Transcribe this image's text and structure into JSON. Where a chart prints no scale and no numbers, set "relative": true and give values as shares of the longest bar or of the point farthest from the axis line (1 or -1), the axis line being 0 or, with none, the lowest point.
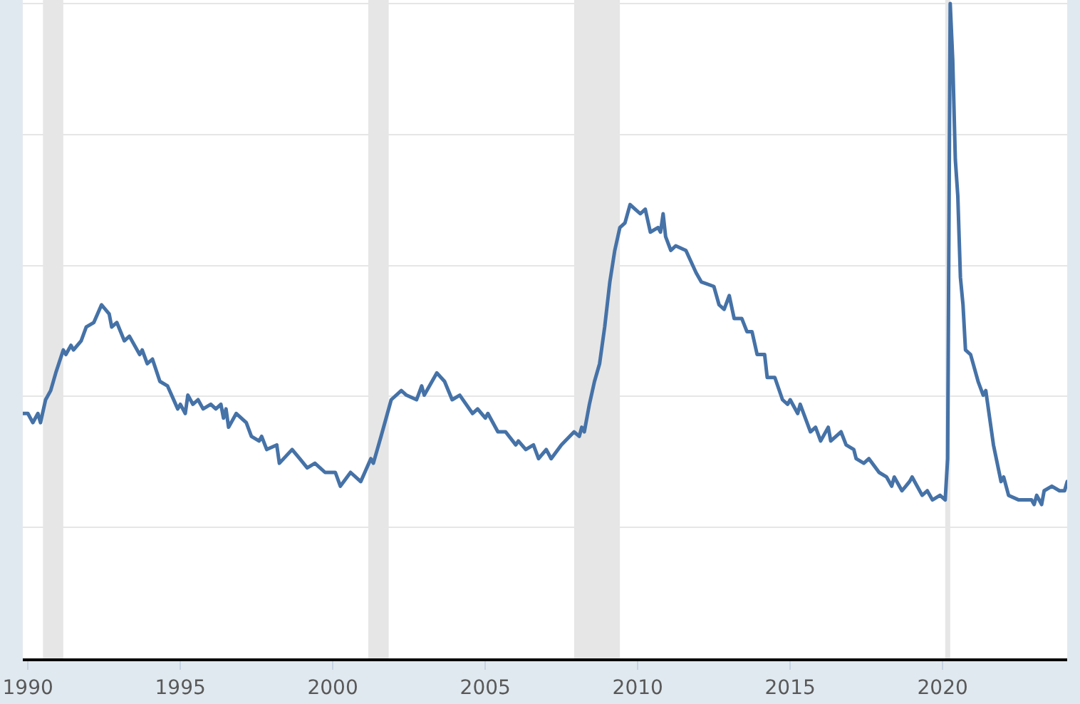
{
  "chart_data": {
    "type": "line",
    "relative": true,
    "x": [
      "1989-11",
      "1990-01",
      "1990-03",
      "1990-05",
      "1990-06",
      "1990-08",
      "1990-10",
      "1990-12",
      "1991-03",
      "1991-04",
      "1991-06",
      "1991-07",
      "1991-10",
      "1991-12",
      "1992-03",
      "1992-06",
      "1992-09",
      "1992-10",
      "1992-12",
      "1993-03",
      "1993-05",
      "1993-09",
      "1993-10",
      "1993-12",
      "1994-02",
      "1994-05",
      "1994-08",
      "1994-12",
      "1995-01",
      "1995-03",
      "1995-04",
      "1995-06",
      "1995-08",
      "1995-10",
      "1996-01",
      "1996-03",
      "1996-05",
      "1996-06",
      "1996-07",
      "1996-08",
      "1996-11",
      "1997-03",
      "1997-05",
      "1997-08",
      "1997-09",
      "1997-11",
      "1998-03",
      "1998-04",
      "1998-09",
      "1998-12",
      "1999-03",
      "1999-06",
      "1999-10",
      "2000-02",
      "2000-04",
      "2000-08",
      "2000-12",
      "2001-04",
      "2001-05",
      "2001-08",
      "2001-10",
      "2001-12",
      "2002-04",
      "2002-06",
      "2002-10",
      "2002-12",
      "2003-01",
      "2003-06",
      "2003-09",
      "2003-12",
      "2004-03",
      "2004-08",
      "2004-10",
      "2005-01",
      "2005-02",
      "2005-06",
      "2005-09",
      "2006-01",
      "2006-02",
      "2006-05",
      "2006-08",
      "2006-10",
      "2007-01",
      "2007-03",
      "2007-07",
      "2007-12",
      "2008-02",
      "2008-03",
      "2008-04",
      "2008-06",
      "2008-08",
      "2008-10",
      "2008-12",
      "2009-02",
      "2009-04",
      "2009-06",
      "2009-08",
      "2009-10",
      "2009-12",
      "2010-02",
      "2010-04",
      "2010-06",
      "2010-09",
      "2010-10",
      "2010-11",
      "2010-12",
      "2011-02",
      "2011-04",
      "2011-08",
      "2011-12",
      "2012-02",
      "2012-07",
      "2012-09",
      "2012-11",
      "2013-01",
      "2013-03",
      "2013-06",
      "2013-08",
      "2013-10",
      "2013-12",
      "2014-03",
      "2014-04",
      "2014-07",
      "2014-10",
      "2014-12",
      "2015-01",
      "2015-04",
      "2015-05",
      "2015-09",
      "2015-11",
      "2016-01",
      "2016-04",
      "2016-05",
      "2016-09",
      "2016-11",
      "2017-02",
      "2017-03",
      "2017-06",
      "2017-08",
      "2017-12",
      "2018-03",
      "2018-05",
      "2018-06",
      "2018-09",
      "2018-12",
      "2019-01",
      "2019-05",
      "2019-07",
      "2019-09",
      "2019-12",
      "2020-02",
      "2020-03",
      "2020-04",
      "2020-05",
      "2020-06",
      "2020-07",
      "2020-08",
      "2020-09",
      "2020-10",
      "2020-12",
      "2021-03",
      "2021-05",
      "2021-06",
      "2021-09",
      "2021-12",
      "2022-01",
      "2022-03",
      "2022-07",
      "2022-12",
      "2023-01",
      "2023-02",
      "2023-04",
      "2023-05",
      "2023-08",
      "2023-11",
      "2024-01",
      "2024-02"
    ],
    "series": [
      {
        "color": "#4572a7",
        "values": [
          0.374,
          0.374,
          0.36,
          0.374,
          0.36,
          0.395,
          0.409,
          0.436,
          0.471,
          0.464,
          0.478,
          0.471,
          0.485,
          0.506,
          0.513,
          0.54,
          0.526,
          0.506,
          0.513,
          0.485,
          0.492,
          0.464,
          0.471,
          0.45,
          0.457,
          0.423,
          0.416,
          0.381,
          0.388,
          0.374,
          0.402,
          0.388,
          0.395,
          0.381,
          0.388,
          0.381,
          0.388,
          0.367,
          0.381,
          0.353,
          0.374,
          0.36,
          0.339,
          0.332,
          0.339,
          0.319,
          0.326,
          0.298,
          0.319,
          0.305,
          0.291,
          0.298,
          0.284,
          0.284,
          0.263,
          0.284,
          0.27,
          0.305,
          0.298,
          0.339,
          0.367,
          0.395,
          0.409,
          0.402,
          0.395,
          0.416,
          0.402,
          0.436,
          0.423,
          0.395,
          0.402,
          0.374,
          0.381,
          0.367,
          0.374,
          0.346,
          0.346,
          0.326,
          0.332,
          0.319,
          0.326,
          0.305,
          0.319,
          0.305,
          0.326,
          0.346,
          0.339,
          0.353,
          0.346,
          0.388,
          0.423,
          0.45,
          0.506,
          0.575,
          0.623,
          0.658,
          0.665,
          0.693,
          0.686,
          0.679,
          0.686,
          0.651,
          0.658,
          0.651,
          0.679,
          0.644,
          0.623,
          0.63,
          0.623,
          0.589,
          0.575,
          0.568,
          0.54,
          0.533,
          0.554,
          0.519,
          0.519,
          0.499,
          0.499,
          0.464,
          0.464,
          0.429,
          0.429,
          0.395,
          0.388,
          0.395,
          0.374,
          0.388,
          0.346,
          0.353,
          0.332,
          0.353,
          0.332,
          0.346,
          0.326,
          0.319,
          0.305,
          0.298,
          0.305,
          0.284,
          0.277,
          0.263,
          0.277,
          0.256,
          0.27,
          0.277,
          0.249,
          0.256,
          0.242,
          0.249,
          0.242,
          0.305,
          1,
          0.914,
          0.762,
          0.706,
          0.582,
          0.54,
          0.471,
          0.464,
          0.423,
          0.402,
          0.409,
          0.326,
          0.27,
          0.277,
          0.249,
          0.242,
          0.242,
          0.235,
          0.249,
          0.235,
          0.256,
          0.263,
          0.256,
          0.256,
          0.27
        ]
      }
    ],
    "xlim": [
      "1989-11-01",
      "2024-02-01"
    ],
    "xticks": [
      "1990",
      "1995",
      "2000",
      "2005",
      "2010",
      "2015",
      "2020"
    ],
    "grid": "y",
    "bands": [
      {
        "axis": "x",
        "from": "1990-07-01",
        "to": "1991-03-01",
        "color": "#e6e6e6"
      },
      {
        "axis": "x",
        "from": "2001-03-01",
        "to": "2001-11-01",
        "color": "#e6e6e6"
      },
      {
        "axis": "x",
        "from": "2007-12-01",
        "to": "2009-06-01",
        "color": "#e6e6e6"
      },
      {
        "axis": "x",
        "from": "2020-02-01",
        "to": "2020-04-01",
        "color": "#e6e6e6"
      }
    ]
  }
}
